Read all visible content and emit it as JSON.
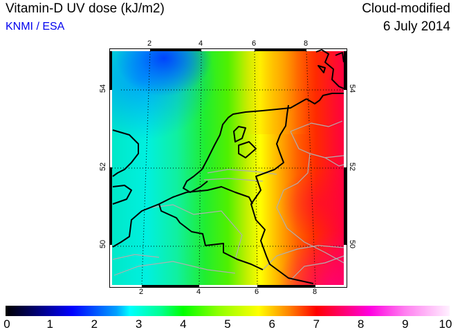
{
  "header": {
    "title": "Vitamin-D UV dose (kJ/m2)",
    "organisation": "KNMI / ESA",
    "mode": "Cloud-modified",
    "date": "6 July 2014"
  },
  "map": {
    "lon_ticks_top": [
      "2",
      "4",
      "6",
      "8"
    ],
    "lon_ticks_bottom": [
      "2",
      "4",
      "6",
      "8"
    ],
    "lat_ticks_left": [
      "54",
      "52",
      "50"
    ],
    "lat_ticks_right": [
      "54",
      "52",
      "50"
    ]
  },
  "colorbar": {
    "ticks": [
      "0",
      "1",
      "2",
      "3",
      "4",
      "5",
      "6",
      "7",
      "8",
      "9",
      "10"
    ],
    "min": 0,
    "max": 10,
    "colors": [
      "#000000",
      "#0000ff",
      "#00ffff",
      "#00ff00",
      "#ffff00",
      "#ff0000",
      "#ff00ff",
      "#ffffff"
    ]
  }
}
